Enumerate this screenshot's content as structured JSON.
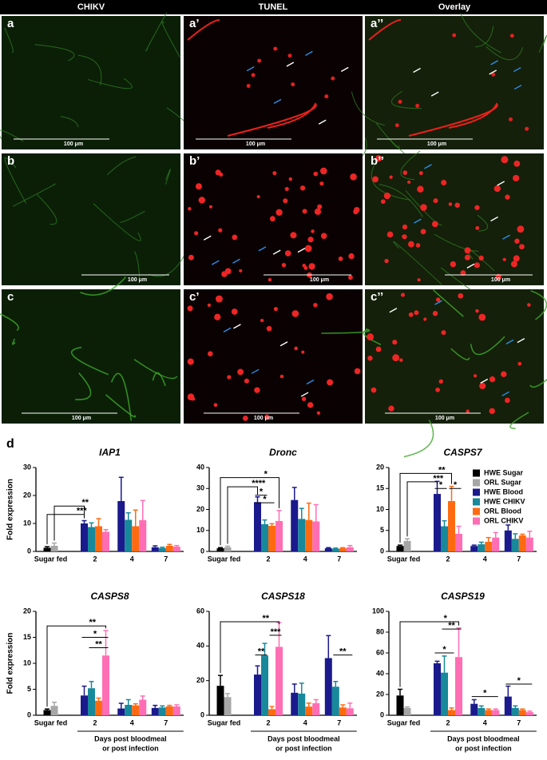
{
  "columns": [
    "CHIKV",
    "TUNEL",
    "Overlay"
  ],
  "panels": [
    {
      "label": "a",
      "scale_bar": "100 μm"
    },
    {
      "label": "a’",
      "scale_bar": "100 μm"
    },
    {
      "label": "a’’",
      "scale_bar": "100 μm"
    },
    {
      "label": "b",
      "scale_bar": "100 μm"
    },
    {
      "label": "b’",
      "scale_bar": "100 μm"
    },
    {
      "label": "b’’",
      "scale_bar": "100 μm"
    },
    {
      "label": "c",
      "scale_bar": "100 μm"
    },
    {
      "label": "c’",
      "scale_bar": "100 μm"
    },
    {
      "label": "c’’",
      "scale_bar": "100 μm"
    }
  ],
  "panel_d_label": "d",
  "legend": [
    {
      "name": "HWE Sugar",
      "color": "#000000"
    },
    {
      "name": "ORL Sugar",
      "color": "#a6a6a6"
    },
    {
      "name": "HWE Blood",
      "color": "#1a1a8c"
    },
    {
      "name": "HWE CHIKV",
      "color": "#17899b"
    },
    {
      "name": "ORL Blood",
      "color": "#ff6a10"
    },
    {
      "name": "ORL CHIKV",
      "color": "#ff6eb4"
    }
  ],
  "chart_data": [
    {
      "type": "bar",
      "title": "IAP1",
      "ylabel": "Fold expression",
      "categories": [
        "Sugar fed",
        "2",
        "4",
        "7"
      ],
      "ylim": [
        0,
        30
      ],
      "yticks": [
        0,
        10,
        20,
        30
      ],
      "series": [
        {
          "values": [
            1.3,
            null,
            null,
            null
          ],
          "errors": [
            0.4,
            null,
            null,
            null
          ]
        },
        {
          "values": [
            2,
            null,
            null,
            null
          ],
          "errors": [
            1,
            null,
            null,
            null
          ]
        },
        {
          "values": [
            null,
            10,
            18,
            1.5
          ],
          "errors": [
            null,
            1,
            8.5,
            0.5
          ]
        },
        {
          "values": [
            null,
            8.7,
            11.3,
            1.2
          ],
          "errors": [
            null,
            1.5,
            2.5,
            0.3
          ]
        },
        {
          "values": [
            null,
            9,
            9,
            2
          ],
          "errors": [
            null,
            2.7,
            5.8,
            0.5
          ]
        },
        {
          "values": [
            null,
            7,
            11.2,
            1.7
          ],
          "errors": [
            null,
            0.8,
            7,
            0.4
          ]
        }
      ],
      "annotations": [
        "**",
        "***"
      ]
    },
    {
      "type": "bar",
      "title": "Dronc",
      "categories": [
        "Sugar fed",
        "2",
        "4",
        "7"
      ],
      "ylim": [
        0,
        40
      ],
      "yticks": [
        0,
        10,
        20,
        30,
        40
      ],
      "series": [
        {
          "values": [
            1.5,
            null,
            null,
            null
          ],
          "errors": [
            0.3,
            null,
            null,
            null
          ]
        },
        {
          "values": [
            2,
            null,
            null,
            null
          ],
          "errors": [
            0.5,
            null,
            null,
            null
          ]
        },
        {
          "values": [
            null,
            23.5,
            24.5,
            1.5
          ],
          "errors": [
            null,
            2.5,
            6,
            0.3
          ]
        },
        {
          "values": [
            null,
            13,
            15.5,
            1.3
          ],
          "errors": [
            null,
            2,
            5,
            0.3
          ]
        },
        {
          "values": [
            null,
            12.2,
            15,
            1.5
          ],
          "errors": [
            null,
            1,
            8,
            0.3
          ]
        },
        {
          "values": [
            null,
            14.5,
            14.3,
            2
          ],
          "errors": [
            null,
            5,
            8,
            0.8
          ]
        }
      ],
      "annotations": [
        "*",
        "****",
        "*",
        "*"
      ]
    },
    {
      "type": "bar",
      "title": "CASPS7",
      "categories": [
        "Sugar fed",
        "2",
        "4",
        "7"
      ],
      "ylim": [
        0,
        20
      ],
      "yticks": [
        0,
        5,
        10,
        15,
        20
      ],
      "series": [
        {
          "values": [
            1.3,
            null,
            null,
            null
          ],
          "errors": [
            0.2,
            null,
            null,
            null
          ]
        },
        {
          "values": [
            2.5,
            null,
            null,
            null
          ],
          "errors": [
            0.5,
            null,
            null,
            null
          ]
        },
        {
          "values": [
            null,
            13.7,
            1.3,
            5
          ],
          "errors": [
            null,
            3,
            0.2,
            1.3
          ]
        },
        {
          "values": [
            null,
            6,
            1.7,
            3
          ],
          "errors": [
            null,
            1.3,
            0.5,
            1.2
          ]
        },
        {
          "values": [
            null,
            12,
            2.3,
            3.8
          ],
          "errors": [
            null,
            3.5,
            1,
            0.3
          ]
        },
        {
          "values": [
            null,
            4.2,
            3.3,
            3.3
          ],
          "errors": [
            null,
            1.8,
            1.2,
            1.5
          ]
        }
      ],
      "annotations": [
        "**",
        "***",
        "*",
        "*"
      ]
    },
    {
      "type": "bar",
      "title": "CASPS8",
      "ylabel": "Fold expression",
      "xlabel": [
        "Days post bloodmeal",
        "or post infection"
      ],
      "categories": [
        "Sugar fed",
        "2",
        "4",
        "7"
      ],
      "ylim": [
        0,
        20
      ],
      "yticks": [
        0,
        5,
        10,
        15,
        20
      ],
      "series": [
        {
          "values": [
            1,
            null,
            null,
            null
          ],
          "errors": [
            0.2,
            null,
            null,
            null
          ]
        },
        {
          "values": [
            1.8,
            null,
            null,
            null
          ],
          "errors": [
            0.7,
            null,
            null,
            null
          ]
        },
        {
          "values": [
            null,
            3.8,
            1.3,
            1.4
          ],
          "errors": [
            null,
            1.8,
            1,
            0.5
          ]
        },
        {
          "values": [
            null,
            5.2,
            2,
            1.5
          ],
          "errors": [
            null,
            1.3,
            1,
            0.3
          ]
        },
        {
          "values": [
            null,
            2.8,
            1.9,
            1.7
          ],
          "errors": [
            null,
            0.5,
            0.3,
            0.2
          ]
        },
        {
          "values": [
            null,
            11.5,
            3,
            1.7
          ],
          "errors": [
            null,
            4.8,
            0.7,
            0.3
          ]
        }
      ],
      "annotations": [
        "**",
        "*",
        "**"
      ]
    },
    {
      "type": "bar",
      "title": "CASPS18",
      "xlabel": [
        "Days post bloodmeal",
        "or post infection"
      ],
      "categories": [
        "Sugar fed",
        "2",
        "4",
        "7"
      ],
      "ylim": [
        0,
        60
      ],
      "yticks": [
        0,
        20,
        40,
        60
      ],
      "series": [
        {
          "values": [
            17,
            null,
            null,
            null
          ],
          "errors": [
            6,
            null,
            null,
            null
          ]
        },
        {
          "values": [
            10.5,
            null,
            null,
            null
          ],
          "errors": [
            2,
            null,
            null,
            null
          ]
        },
        {
          "values": [
            null,
            23.5,
            13,
            33
          ],
          "errors": [
            null,
            5,
            5,
            13
          ]
        },
        {
          "values": [
            null,
            34.5,
            12.5,
            16.5
          ],
          "errors": [
            null,
            7,
            6,
            3
          ]
        },
        {
          "values": [
            null,
            3.5,
            5,
            4.5
          ],
          "errors": [
            null,
            1.5,
            2,
            1.5
          ]
        },
        {
          "values": [
            null,
            39.5,
            7,
            4
          ],
          "errors": [
            null,
            14,
            2,
            3
          ]
        }
      ],
      "annotations": [
        "**",
        "***",
        "**",
        "**"
      ]
    },
    {
      "type": "bar",
      "title": "CASPS19",
      "xlabel": [
        "Days post bloodmeal",
        "or post infection"
      ],
      "categories": [
        "Sugar fed",
        "2",
        "4",
        "7"
      ],
      "ylim": [
        0,
        100
      ],
      "yticks": [
        0,
        20,
        40,
        60,
        80,
        100
      ],
      "series": [
        {
          "values": [
            19,
            null,
            null,
            null
          ],
          "errors": [
            6,
            null,
            null,
            null
          ]
        },
        {
          "values": [
            7,
            null,
            null,
            null
          ],
          "errors": [
            1,
            null,
            null,
            null
          ]
        },
        {
          "values": [
            null,
            50,
            11,
            18
          ],
          "errors": [
            null,
            2,
            4,
            10
          ]
        },
        {
          "values": [
            null,
            41,
            7,
            7
          ],
          "errors": [
            null,
            16,
            2,
            2
          ]
        },
        {
          "values": [
            null,
            5,
            5,
            5
          ],
          "errors": [
            null,
            2,
            1,
            1
          ]
        },
        {
          "values": [
            null,
            56,
            5,
            3
          ],
          "errors": [
            null,
            28,
            1,
            1
          ]
        }
      ],
      "annotations": [
        "*",
        "**",
        "*",
        "*",
        "*"
      ]
    }
  ]
}
